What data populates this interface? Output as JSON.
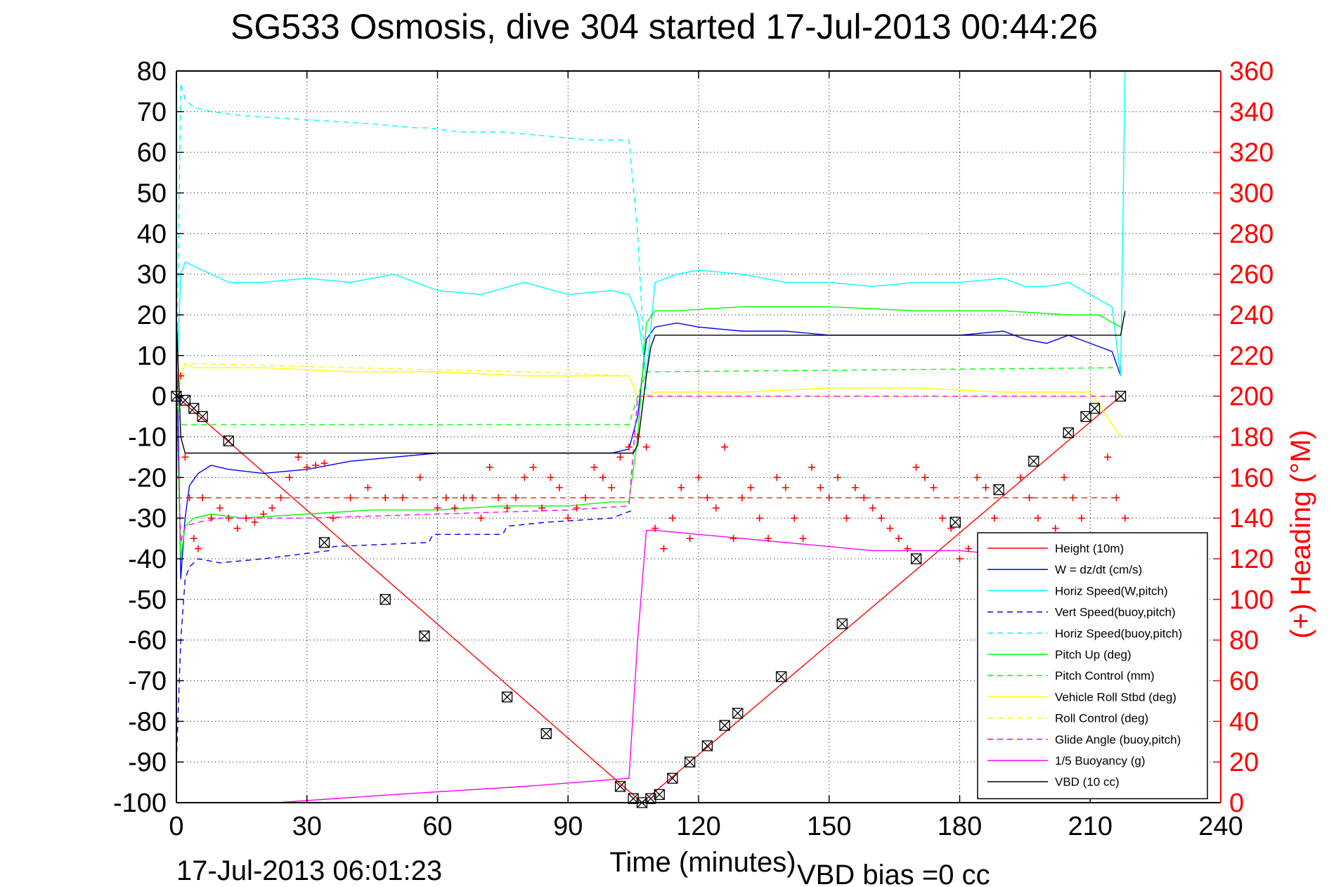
{
  "chart_data": {
    "type": "line",
    "title": "SG533 Osmosis, dive 304 started 17-Jul-2013 00:44:26",
    "xlabel": "Time (minutes)",
    "ylabel_right": "(+) Heading (°M)",
    "footer_timestamp": "17-Jul-2013 06:01:23",
    "footer_note": "VBD bias =0 cc",
    "xlim": [
      0,
      240
    ],
    "ylim": [
      -100,
      80
    ],
    "ylim_right": [
      0,
      360
    ],
    "x_ticks": [
      "0",
      "30",
      "60",
      "90",
      "120",
      "150",
      "180",
      "210",
      "240"
    ],
    "y_ticks": [
      "80",
      "70",
      "60",
      "50",
      "40",
      "30",
      "20",
      "10",
      "0",
      "-10",
      "-20",
      "-30",
      "-40",
      "-50",
      "-60",
      "-70",
      "-80",
      "-90",
      "-100"
    ],
    "y_right_ticks": [
      "360",
      "340",
      "320",
      "300",
      "280",
      "260",
      "240",
      "220",
      "200",
      "180",
      "160",
      "140",
      "120",
      "100",
      "80",
      "60",
      "40",
      "20",
      "0"
    ],
    "grid": true,
    "legend_position": "bottom-right",
    "colors": {
      "red": "#ff0000",
      "blue": "#0000ff",
      "cyan": "#00ffff",
      "green": "#00ff00",
      "yellow": "#ffff00",
      "magenta": "#ff00ff",
      "black": "#000000"
    },
    "series": [
      {
        "name": "Height (10m)",
        "color": "#ff0000",
        "style": "solid",
        "x": [
          0,
          107,
          217
        ],
        "y": [
          0,
          -100,
          0
        ]
      },
      {
        "name": "W = dz/dt (cm/s)",
        "color": "#0000ff",
        "style": "solid",
        "x": [
          0,
          1,
          2,
          3,
          5,
          8,
          12,
          20,
          30,
          40,
          50,
          60,
          70,
          80,
          90,
          100,
          104,
          106,
          108,
          110,
          115,
          120,
          130,
          140,
          150,
          160,
          170,
          180,
          190,
          195,
          200,
          205,
          210,
          215,
          217
        ],
        "y": [
          20,
          -45,
          -30,
          -22,
          -19,
          -17,
          -18,
          -19,
          -18,
          -16,
          -15,
          -14,
          -14,
          -14,
          -14,
          -14,
          -13,
          -5,
          14,
          17,
          18,
          17,
          16,
          16,
          15,
          15,
          15,
          15,
          16,
          14,
          13,
          15,
          13,
          11,
          5
        ]
      },
      {
        "name": "Horiz Speed(W,pitch)",
        "color": "#00ffff",
        "style": "solid",
        "x": [
          0,
          1,
          2,
          4,
          8,
          12,
          20,
          30,
          40,
          50,
          60,
          70,
          80,
          90,
          100,
          104,
          106,
          108,
          110,
          115,
          120,
          130,
          140,
          150,
          160,
          170,
          180,
          190,
          195,
          200,
          205,
          210,
          215,
          217,
          218
        ],
        "y": [
          0,
          30,
          33,
          32,
          30,
          28,
          28,
          29,
          28,
          30,
          26,
          25,
          28,
          25,
          26,
          25,
          20,
          5,
          28,
          30,
          31,
          30,
          28,
          28,
          27,
          28,
          28,
          29,
          27,
          27,
          28,
          25,
          22,
          5,
          80
        ]
      },
      {
        "name": "Vert Speed(buoy,pitch)",
        "color": "#0000ff",
        "style": "dashed",
        "x": [
          0,
          1,
          2,
          3,
          5,
          10,
          20,
          35,
          36,
          58,
          59,
          75,
          76,
          85,
          100,
          105
        ],
        "y": [
          -90,
          -60,
          -45,
          -42,
          -40,
          -41,
          -40,
          -38,
          -37,
          -36,
          -34,
          -34,
          -32,
          -31,
          -30,
          -28
        ]
      },
      {
        "name": "Horiz Speed(buoy,pitch)",
        "color": "#00ffff",
        "style": "dashed",
        "x": [
          0,
          1,
          2,
          4,
          8,
          15,
          30,
          45,
          55,
          58,
          65,
          75,
          85,
          95,
          104,
          106,
          107,
          108
        ],
        "y": [
          0,
          77,
          73,
          71,
          70,
          69,
          68,
          67,
          66,
          66,
          65,
          65,
          64,
          63,
          63,
          40,
          20,
          0
        ]
      },
      {
        "name": "Pitch Up (deg)",
        "color": "#00ff00",
        "style": "solid",
        "x": [
          0,
          1,
          2,
          4,
          8,
          15,
          30,
          45,
          60,
          75,
          90,
          100,
          104,
          106,
          108,
          110,
          115,
          130,
          150,
          170,
          190,
          205,
          212,
          217
        ],
        "y": [
          0,
          -40,
          -32,
          -30,
          -29,
          -30,
          -29,
          -28,
          -28,
          -27,
          -27,
          -26,
          -26,
          -10,
          18,
          21,
          21,
          22,
          22,
          21,
          21,
          20,
          20,
          17
        ]
      },
      {
        "name": "Pitch Control (mm)",
        "color": "#00ff00",
        "style": "dashed",
        "x": [
          0,
          1,
          2,
          5,
          30,
          60,
          90,
          104,
          106,
          108,
          110,
          217
        ],
        "y": [
          0,
          -7,
          -7,
          -7,
          -7,
          -7,
          -7,
          -7,
          0,
          6,
          6,
          7
        ]
      },
      {
        "name": "Vehicle Roll Stbd (deg)",
        "color": "#ffff00",
        "style": "solid",
        "x": [
          0,
          2,
          4,
          8,
          20,
          40,
          60,
          80,
          100,
          104,
          106,
          108,
          110,
          130,
          150,
          170,
          190,
          210,
          217
        ],
        "y": [
          0,
          8,
          7,
          7,
          7,
          6,
          6,
          5,
          5,
          5,
          0,
          0,
          1,
          1,
          2,
          2,
          1,
          1,
          -10
        ]
      },
      {
        "name": "Roll Control (deg)",
        "color": "#ffff00",
        "style": "dashed",
        "x": [
          0,
          2,
          5,
          40,
          80,
          104,
          106,
          108,
          217
        ],
        "y": [
          0,
          8,
          8,
          7,
          6,
          5,
          0,
          0,
          0
        ]
      },
      {
        "name": "Glide Angle (buoy,pitch)",
        "color": "#ff00ff",
        "style": "dashed",
        "x": [
          0,
          1,
          2,
          5,
          10,
          30,
          60,
          90,
          104,
          106,
          108,
          217
        ],
        "y": [
          0,
          -36,
          -32,
          -31,
          -30,
          -30,
          -29,
          -28,
          -27,
          0,
          0,
          0
        ]
      },
      {
        "name": "1/5 Buoyancy (g)",
        "color": "#ff00ff",
        "style": "solid",
        "x": [
          23,
          50,
          80,
          104,
          106,
          108,
          110,
          120,
          140,
          160,
          180,
          200,
          210
        ],
        "y": [
          -100,
          -98,
          -96,
          -94,
          -60,
          -33,
          -33,
          -34,
          -36,
          -38,
          -38,
          -40,
          -40
        ]
      },
      {
        "name": "VBD (10 cc)",
        "color": "#000000",
        "style": "solid",
        "x": [
          0,
          1,
          2,
          105,
          106,
          108,
          109,
          110,
          115,
          210,
          217,
          218
        ],
        "y": [
          20,
          -10,
          -14,
          -14,
          -12,
          5,
          12,
          15,
          15,
          15,
          15,
          21
        ]
      }
    ],
    "heading": {
      "axis": "right",
      "color": "#ff0000",
      "marker": "+",
      "x": [
        1,
        2,
        3,
        4,
        5,
        6,
        8,
        10,
        12,
        14,
        16,
        18,
        20,
        22,
        24,
        26,
        28,
        30,
        32,
        34,
        36,
        40,
        44,
        48,
        52,
        56,
        60,
        62,
        64,
        66,
        68,
        70,
        72,
        74,
        76,
        78,
        80,
        82,
        84,
        86,
        88,
        90,
        92,
        94,
        96,
        98,
        100,
        102,
        104,
        106,
        108,
        110,
        112,
        114,
        116,
        118,
        120,
        122,
        124,
        126,
        128,
        130,
        132,
        134,
        136,
        138,
        140,
        142,
        144,
        146,
        148,
        150,
        152,
        154,
        156,
        158,
        160,
        162,
        164,
        166,
        168,
        170,
        172,
        174,
        176,
        178,
        180,
        182,
        184,
        186,
        188,
        190,
        192,
        194,
        196,
        198,
        200,
        202,
        204,
        206,
        208,
        210,
        212,
        214,
        216,
        218
      ],
      "y": [
        210,
        170,
        150,
        130,
        125,
        150,
        140,
        145,
        140,
        135,
        140,
        138,
        142,
        145,
        150,
        160,
        170,
        165,
        166,
        167,
        140,
        150,
        155,
        150,
        150,
        160,
        145,
        150,
        145,
        150,
        150,
        140,
        165,
        150,
        145,
        150,
        160,
        165,
        145,
        160,
        155,
        140,
        145,
        150,
        165,
        160,
        155,
        170,
        175,
        180,
        175,
        135,
        125,
        140,
        155,
        130,
        160,
        150,
        145,
        175,
        130,
        150,
        155,
        140,
        130,
        160,
        155,
        140,
        130,
        165,
        155,
        150,
        160,
        140,
        155,
        150,
        145,
        140,
        135,
        130,
        125,
        165,
        160,
        155,
        140,
        135,
        120,
        125,
        160,
        155,
        140,
        125,
        120,
        160,
        150,
        140,
        130,
        135,
        160,
        150,
        140,
        130,
        125,
        170,
        150,
        140
      ]
    },
    "markers": {
      "color": "#000000",
      "shape": "square-x",
      "x": [
        0,
        2,
        4,
        6,
        12,
        34,
        48,
        57,
        76,
        85,
        102,
        105,
        107,
        109,
        111,
        114,
        118,
        122,
        126,
        129,
        139,
        153,
        170,
        179,
        189,
        197,
        205,
        209,
        211,
        217
      ],
      "y": [
        0,
        -1,
        -3,
        -5,
        -11,
        -36,
        -50,
        -59,
        -74,
        -83,
        -96,
        -99,
        -100,
        -99,
        -98,
        -94,
        -90,
        -86,
        -81,
        -78,
        -69,
        -56,
        -40,
        -31,
        -23,
        -16,
        -9,
        -5,
        -3,
        0
      ]
    },
    "reference_lines": [
      {
        "axis": "left",
        "y": -25,
        "color": "#ff0000",
        "style": "dashed",
        "x": [
          0,
          217
        ]
      }
    ]
  }
}
